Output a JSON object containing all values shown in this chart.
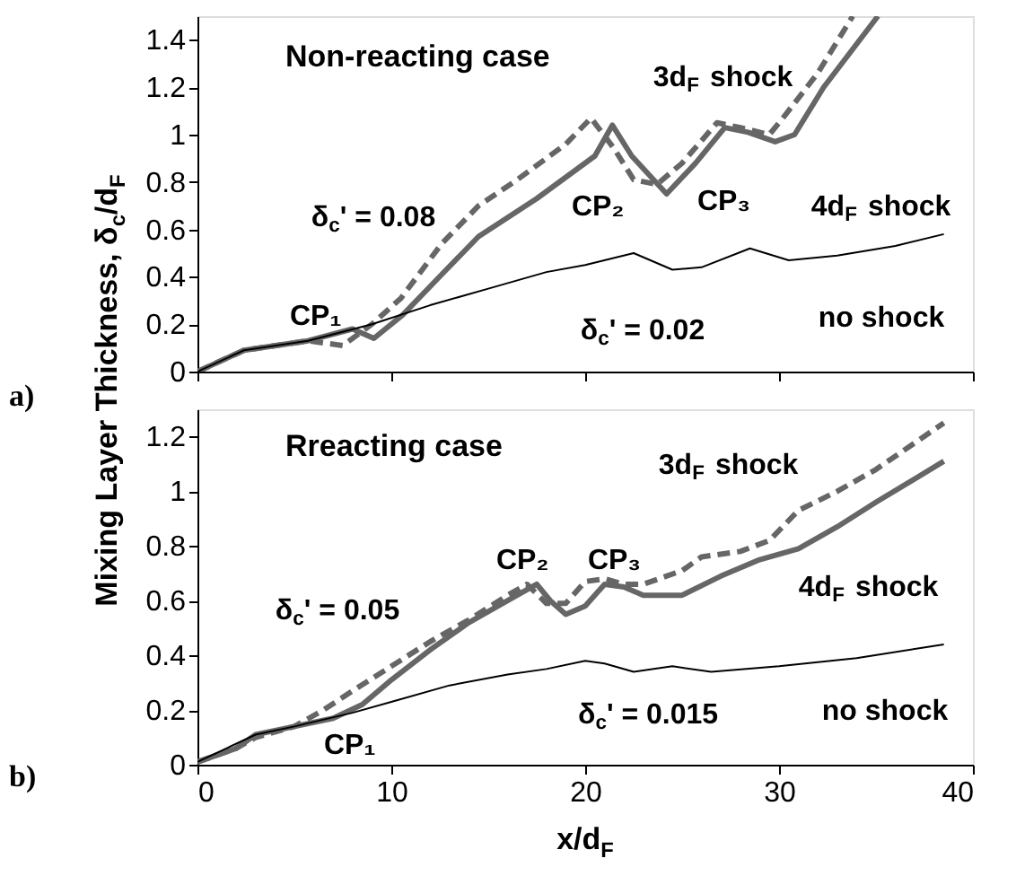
{
  "chart_data": [
    {
      "type": "line",
      "title": "Non-reacting case",
      "ylabel": "Mixing Layer Thickness, δ$_{c}$/d$_{F}$",
      "xlim": [
        0,
        40
      ],
      "xticks": [
        0,
        10,
        20,
        30,
        40
      ],
      "ylim": [
        0,
        1.5
      ],
      "yticks": [
        0,
        0.2,
        0.4,
        0.6,
        0.8,
        1,
        1.2,
        1.4
      ],
      "tick_labels": "y",
      "grid": false,
      "legend": false,
      "series": [
        {
          "color": "#666666",
          "line_style": "solid",
          "x": [
            0,
            2.4,
            5.7,
            8,
            9.1,
            10.6,
            12.6,
            14.5,
            17.5,
            20.5,
            21.4,
            22.4,
            24.2,
            25.7,
            27.2,
            28.4,
            29.8,
            30.8,
            32.3,
            35.1
          ],
          "values": [
            0,
            0.09,
            0.13,
            0.18,
            0.14,
            0.24,
            0.41,
            0.57,
            0.73,
            0.91,
            1.04,
            0.91,
            0.75,
            0.88,
            1.03,
            1.01,
            0.97,
            1.0,
            1.2,
            1.5
          ]
        },
        {
          "color": "#666666",
          "line_style": "dashed",
          "x": [
            0,
            2.4,
            5.7,
            7.5,
            9,
            10.5,
            12.6,
            14.5,
            16.5,
            19,
            20.3,
            21.5,
            22.5,
            23.7,
            25,
            26.8,
            28,
            29.5,
            30.2,
            32,
            33.8
          ],
          "values": [
            0,
            0.09,
            0.13,
            0.11,
            0.2,
            0.31,
            0.54,
            0.7,
            0.81,
            0.96,
            1.07,
            0.94,
            0.81,
            0.79,
            0.88,
            1.05,
            1.03,
            1.0,
            1.07,
            1.26,
            1.5
          ]
        },
        {
          "color": "#000000",
          "line_style": "solid",
          "x": [
            0,
            2.4,
            5.7,
            9,
            12,
            15,
            18,
            20,
            22.5,
            24.5,
            26,
            28.5,
            30.5,
            33,
            36,
            38.5
          ],
          "values": [
            0,
            0.09,
            0.13,
            0.2,
            0.28,
            0.35,
            0.42,
            0.45,
            0.5,
            0.43,
            0.44,
            0.52,
            0.47,
            0.49,
            0.53,
            0.58
          ]
        }
      ],
      "annotations": [
        "a)",
        "CP₁",
        "CP₂",
        "CP₃",
        "3d$_{F}$ shock",
        "4d$_{F}$ shock",
        "no shock",
        "δ$_{c}$' = 0.08",
        "δ$_{c}$' = 0.02"
      ]
    },
    {
      "type": "line",
      "title": "Rreacting case",
      "xlabel": "x/d$_{F}$",
      "xlim": [
        0,
        40
      ],
      "xticks": [
        0,
        10,
        20,
        30,
        40
      ],
      "ylim": [
        0,
        1.3
      ],
      "yticks": [
        0,
        0.2,
        0.4,
        0.6,
        0.8,
        1,
        1.2
      ],
      "grid": false,
      "legend": false,
      "series": [
        {
          "color": "#666666",
          "line_style": "solid",
          "x": [
            0,
            2,
            3,
            5,
            7,
            8.5,
            10,
            12,
            14,
            16,
            17.5,
            18.2,
            19,
            20,
            21,
            22,
            23,
            25,
            27,
            29,
            31,
            33,
            35,
            38.5
          ],
          "values": [
            0.01,
            0.06,
            0.11,
            0.14,
            0.17,
            0.22,
            0.31,
            0.42,
            0.52,
            0.6,
            0.66,
            0.6,
            0.55,
            0.58,
            0.66,
            0.65,
            0.62,
            0.62,
            0.69,
            0.75,
            0.79,
            0.87,
            0.96,
            1.11
          ]
        },
        {
          "color": "#666666",
          "line_style": "dashed",
          "x": [
            0,
            2,
            3,
            5,
            6.5,
            8,
            10,
            12,
            14,
            16,
            17,
            18,
            19,
            20,
            21,
            22,
            23,
            25,
            26,
            28,
            29.5,
            31,
            33,
            35,
            38.5
          ],
          "values": [
            0.01,
            0.06,
            0.1,
            0.14,
            0.2,
            0.27,
            0.36,
            0.45,
            0.53,
            0.62,
            0.66,
            0.59,
            0.59,
            0.67,
            0.68,
            0.66,
            0.66,
            0.71,
            0.76,
            0.78,
            0.82,
            0.93,
            1.0,
            1.08,
            1.25
          ]
        },
        {
          "color": "#000000",
          "line_style": "solid",
          "x": [
            0,
            3,
            5,
            8,
            10,
            13,
            16,
            18,
            20,
            21,
            22.5,
            24.5,
            26.5,
            30,
            34,
            38.5
          ],
          "values": [
            0.01,
            0.11,
            0.14,
            0.19,
            0.23,
            0.29,
            0.33,
            0.35,
            0.38,
            0.37,
            0.34,
            0.36,
            0.34,
            0.36,
            0.39,
            0.44
          ]
        }
      ],
      "annotations": [
        "b)",
        "CP₁",
        "CP₂",
        "CP₃",
        "3d$_{F}$ shock",
        "4d$_{F}$ shock",
        "no shock",
        "δ$_{c}$' = 0.05",
        "δ$_{c}$' = 0.015"
      ]
    }
  ]
}
